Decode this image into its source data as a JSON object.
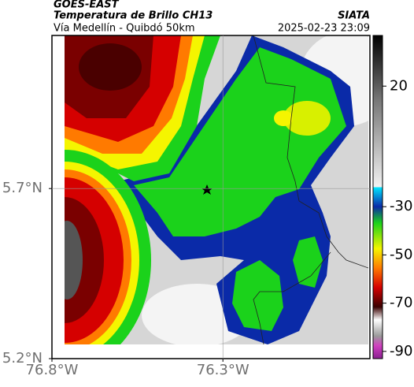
{
  "header": {
    "title": "GOES-EAST",
    "subtitle": "Temperatura de Brillo CH13",
    "region": "Vía Medellín - Quibdó 50km",
    "source": "SIATA",
    "datetime": "2025-02-23 23:09"
  },
  "map": {
    "xlim": [
      -76.8,
      -75.87
    ],
    "ylim": [
      5.2,
      6.15
    ],
    "xticks": [
      {
        "value": -76.8,
        "label": "76.8°W"
      },
      {
        "value": -76.3,
        "label": "76.3°W"
      }
    ],
    "yticks": [
      {
        "value": 5.2,
        "label": "5.2°N"
      },
      {
        "value": 5.7,
        "label": "5.7°N"
      }
    ],
    "grid": true
  },
  "colorbar": {
    "lim": [
      -93,
      41
    ],
    "ticks": [
      20,
      -30,
      -50,
      -70,
      -90
    ]
  }
}
